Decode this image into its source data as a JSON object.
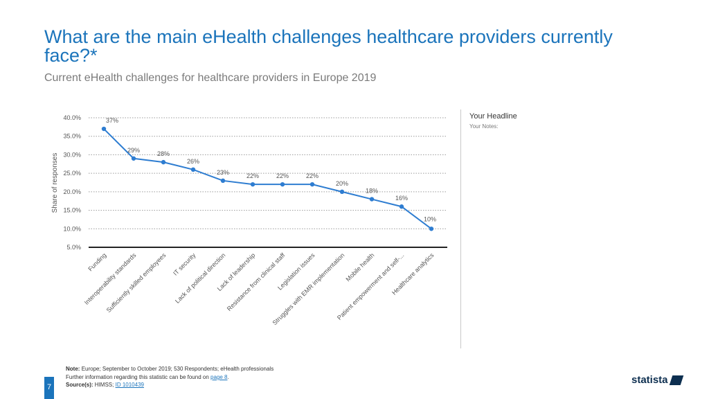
{
  "header": {
    "title": "What are the main eHealth challenges healthcare providers currently face?*",
    "subtitle": "Current eHealth challenges for healthcare providers in Europe 2019"
  },
  "side_panel": {
    "headline": "Your Headline",
    "notes": "Your Notes:"
  },
  "footer": {
    "note_label": "Note:",
    "note_text": "Europe; September to October 2019; 530 Respondents; eHealth professionals",
    "further_info": "Further information regarding this statistic can be found on",
    "page_link": "page 8",
    "further_info_end": ".",
    "source_label": "Source(s):",
    "source_text": "HIMSS;",
    "source_id": "ID 1010439",
    "page_number": "7",
    "logo": "statista"
  },
  "colors": {
    "accent": "#1b74bb",
    "line": "#2e7dd1",
    "text": "#555555"
  },
  "chart_data": {
    "type": "line",
    "title": "What are the main eHealth challenges healthcare providers currently face?*",
    "ylabel": "Share of responses",
    "xlabel": "",
    "ylim": [
      5,
      40
    ],
    "yticks": [
      40,
      35,
      30,
      25,
      20,
      15,
      10,
      5
    ],
    "ytick_labels": [
      "40.0%",
      "35.0%",
      "30.0%",
      "25.0%",
      "20.0%",
      "15.0%",
      "10.0%",
      "5.0%"
    ],
    "grid": true,
    "categories": [
      "Funding",
      "Interoperability standards",
      "Sufficiently skilled employees",
      "IT security",
      "Lack of political direction",
      "Lack of leadership",
      "Resistance from clinical staff",
      "Legislation issues",
      "Struggles with EMR implementation",
      "Mobile health",
      "Patient empowerment and self-...",
      "Healthcare analytics"
    ],
    "values": [
      37,
      29,
      28,
      26,
      23,
      22,
      22,
      22,
      20,
      18,
      16,
      10
    ],
    "data_labels": [
      "37%",
      "29%",
      "28%",
      "26%",
      "23%",
      "22%",
      "22%",
      "22%",
      "20%",
      "18%",
      "16%",
      "10%"
    ]
  }
}
